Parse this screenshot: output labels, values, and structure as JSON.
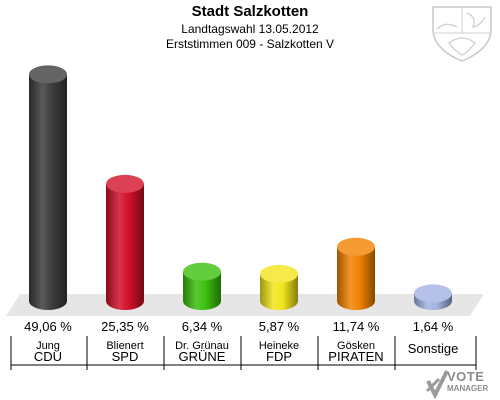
{
  "title": "Stadt Salzkotten",
  "subtitle": "Landtagswahl 13.05.2012",
  "subsubtitle": "Erststimmen 009 - Salzkotten V",
  "logo": {
    "line1": "VOTE",
    "line2": "MANAGER",
    "icon": "vote-check-icon"
  },
  "crest": {
    "icon": "coat-of-arms-icon"
  },
  "chart_data": {
    "type": "bar",
    "unit": "%",
    "ylim": [
      0,
      50
    ],
    "grid": false,
    "legend": "none",
    "bars": [
      {
        "candidate": "Jung",
        "party": "CDU",
        "value": 49.06,
        "label": "49,06 %",
        "color": "#3d3d3d"
      },
      {
        "candidate": "Blienert",
        "party": "SPD",
        "value": 25.35,
        "label": "25,35 %",
        "color": "#d2102b"
      },
      {
        "candidate": "Dr. Grünau",
        "party": "GRÜNE",
        "value": 6.34,
        "label": "6,34 %",
        "color": "#3cc00e"
      },
      {
        "candidate": "Heineke",
        "party": "FDP",
        "value": 5.87,
        "label": "5,87 %",
        "color": "#f2e51c"
      },
      {
        "candidate": "Gösken",
        "party": "PIRATEN",
        "value": 11.74,
        "label": "11,74 %",
        "color": "#f28200"
      },
      {
        "candidate": "",
        "party": "Sonstige",
        "value": 1.64,
        "label": "1,64 %",
        "color": "#a3b2e2"
      }
    ]
  }
}
